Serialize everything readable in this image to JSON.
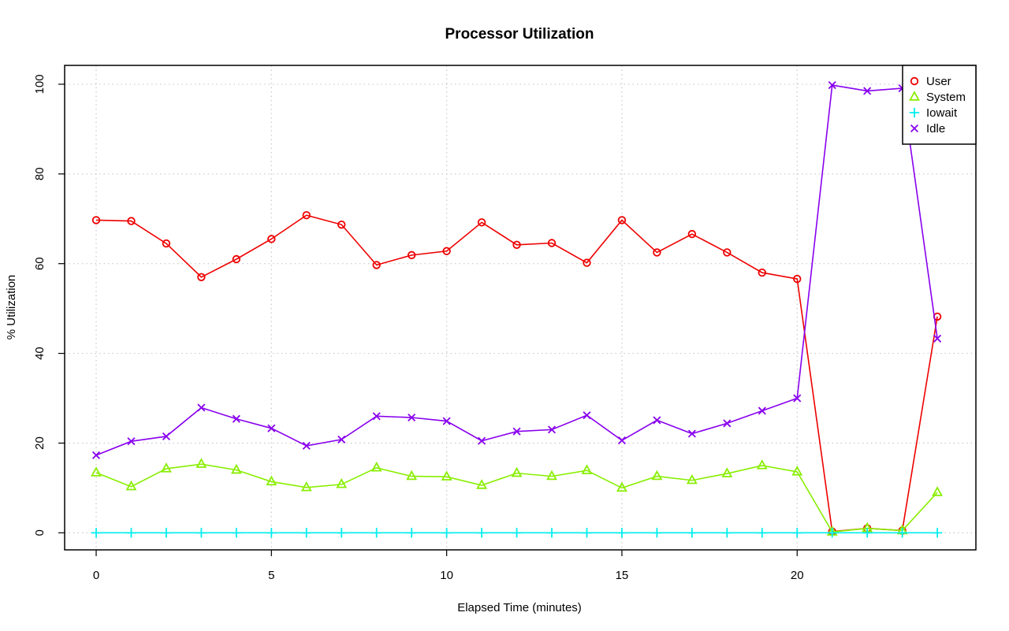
{
  "chart_data": {
    "type": "line",
    "title": "Processor Utilization",
    "xlabel": "Elapsed Time (minutes)",
    "ylabel": "% Utilization",
    "xlim": [
      -0.9,
      25.1
    ],
    "ylim": [
      -3.8,
      104.2
    ],
    "x_ticks": [
      0,
      5,
      10,
      15,
      20
    ],
    "y_ticks": [
      0,
      20,
      40,
      60,
      80,
      100
    ],
    "grid": true,
    "legend_position": "top-right",
    "x": [
      0,
      1,
      2,
      3,
      4,
      5,
      6,
      7,
      8,
      9,
      10,
      11,
      12,
      13,
      14,
      15,
      16,
      17,
      18,
      19,
      20,
      21,
      22,
      23,
      24
    ],
    "series": [
      {
        "name": "User",
        "color": "#ee0000",
        "marker": "circle",
        "values": [
          69.7,
          69.5,
          64.5,
          57.0,
          61.0,
          65.5,
          70.8,
          68.7,
          59.7,
          61.9,
          62.8,
          69.2,
          64.2,
          64.6,
          60.2,
          69.7,
          62.5,
          66.6,
          62.5,
          58.0,
          56.6,
          0.3,
          1.0,
          0.5,
          48.2
        ]
      },
      {
        "name": "System",
        "color": "#88ee00",
        "marker": "triangle",
        "values": [
          13.4,
          10.3,
          14.3,
          15.3,
          14.0,
          11.4,
          10.1,
          10.8,
          14.5,
          12.6,
          12.5,
          10.6,
          13.3,
          12.6,
          13.9,
          10.0,
          12.6,
          11.7,
          13.2,
          15.0,
          13.6,
          0.2,
          1.0,
          0.5,
          9.0
        ]
      },
      {
        "name": "Iowait",
        "color": "#00eeee",
        "marker": "plus",
        "values": [
          0,
          0,
          0,
          0,
          0,
          0,
          0,
          0,
          0,
          0,
          0,
          0,
          0,
          0,
          0,
          0,
          0,
          0,
          0,
          0,
          0,
          0,
          0,
          0,
          0
        ]
      },
      {
        "name": "Idle",
        "color": "#8800ee",
        "marker": "x",
        "values": [
          17.3,
          20.4,
          21.5,
          27.9,
          25.4,
          23.3,
          19.4,
          20.8,
          26.0,
          25.7,
          24.9,
          20.5,
          22.6,
          23.0,
          26.2,
          20.6,
          25.1,
          22.1,
          24.4,
          27.2,
          30.0,
          99.8,
          98.5,
          99.1,
          43.3
        ]
      }
    ]
  }
}
